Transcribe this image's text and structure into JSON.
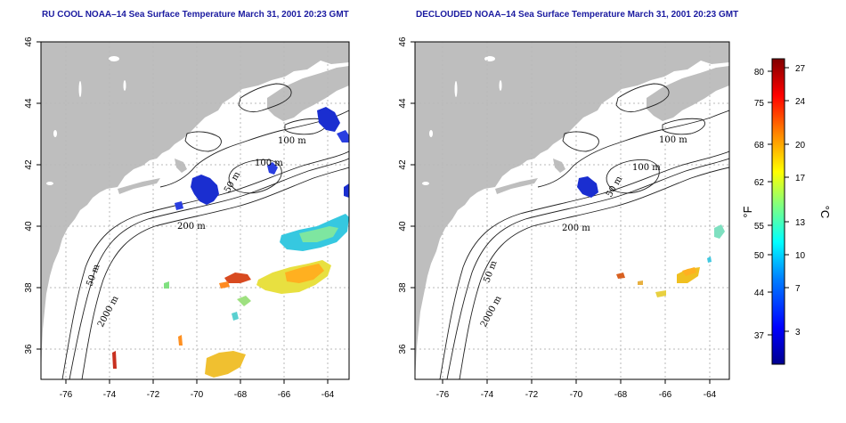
{
  "panels": [
    {
      "id": "left",
      "title": "RU COOL NOAA–14 Sea Surface Temperature March 31, 2001 20:23 GMT",
      "x_ticks": [
        "-76",
        "-74",
        "-72",
        "-70",
        "-68",
        "-66",
        "-64"
      ],
      "y_ticks": [
        "36",
        "38",
        "40",
        "42",
        "44",
        "46"
      ],
      "contour_labels": [
        "100 m",
        "100 m",
        "50 m",
        "200 m",
        "50 m",
        "2000 m"
      ]
    },
    {
      "id": "right",
      "title": "DECLOUDED NOAA–14 Sea Surface Temperature March 31, 2001 20:23 GMT",
      "x_ticks": [
        "-76",
        "-74",
        "-72",
        "-70",
        "-68",
        "-66",
        "-64"
      ],
      "y_ticks": [
        "36",
        "38",
        "40",
        "42",
        "44",
        "46"
      ],
      "contour_labels": [
        "100 m",
        "100 m",
        "50 m",
        "200 m",
        "50 m",
        "2000 m"
      ]
    }
  ],
  "map_extent": {
    "lon": [
      -77,
      -63
    ],
    "lat": [
      35,
      46
    ]
  },
  "colorbar": {
    "fahrenheit_unit": "°F",
    "celsius_unit": "°C",
    "fahrenheit_ticks": [
      "80",
      "75",
      "68",
      "62",
      "55",
      "50",
      "44",
      "37"
    ],
    "celsius_ticks": [
      "27",
      "24",
      "20",
      "17",
      "13",
      "10",
      "7",
      "3"
    ],
    "colors": [
      "#00008f",
      "#0000ff",
      "#0080ff",
      "#00ffff",
      "#80ff80",
      "#ffff00",
      "#ff8000",
      "#ff0000",
      "#800000"
    ]
  },
  "colors": {
    "land": "#bebebe",
    "title": "#1a1aa0",
    "grid": "#b8b8b8",
    "cold_patch": "#1a2ed0"
  }
}
